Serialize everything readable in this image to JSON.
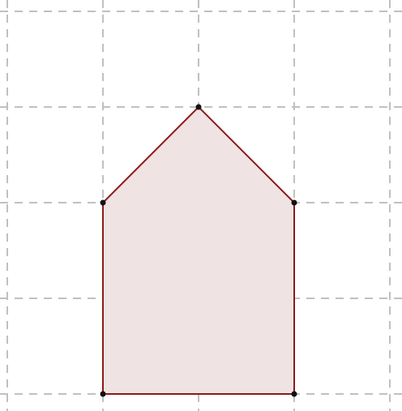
{
  "grid": {
    "x_lines": [
      0,
      1,
      2,
      3,
      4
    ],
    "y_lines": [
      0,
      1,
      2,
      3,
      4
    ],
    "style": "dashed",
    "color": "#c0c0c0"
  },
  "polygon": {
    "name": "house-pentagon",
    "vertices": [
      {
        "x": 1,
        "y": 4
      },
      {
        "x": 3,
        "y": 4
      },
      {
        "x": 3,
        "y": 2
      },
      {
        "x": 2,
        "y": 1
      },
      {
        "x": 1,
        "y": 2
      }
    ],
    "stroke_color": "#8b1a1a",
    "fill_color": "#f0e3e3",
    "vertex_color": "#111111"
  }
}
